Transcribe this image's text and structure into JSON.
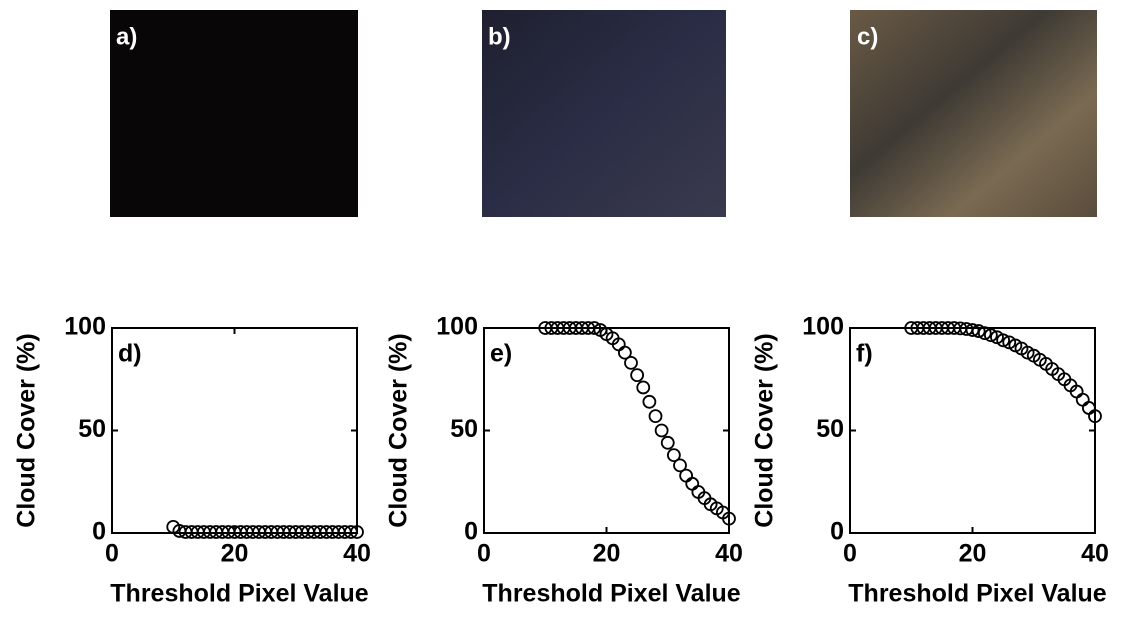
{
  "images": [
    {
      "label": "a)"
    },
    {
      "label": "b)"
    },
    {
      "label": "c)"
    }
  ],
  "chart_data": [
    {
      "type": "scatter",
      "label": "d)",
      "xlabel": "Threshold Pixel Value",
      "ylabel": "Cloud Cover (%)",
      "color": "#000000",
      "x": [
        10,
        11,
        12,
        13,
        14,
        15,
        16,
        17,
        18,
        19,
        20,
        21,
        22,
        23,
        24,
        25,
        26,
        27,
        28,
        29,
        30,
        31,
        32,
        33,
        34,
        35,
        36,
        37,
        38,
        39,
        40
      ],
      "values": [
        3,
        1,
        0.5,
        0.5,
        0.5,
        0.5,
        0.5,
        0.5,
        0.5,
        0.5,
        0.5,
        0.5,
        0.5,
        0.5,
        0.5,
        0.5,
        0.5,
        0.5,
        0.5,
        0.5,
        0.5,
        0.5,
        0.5,
        0.5,
        0.5,
        0.5,
        0.5,
        0.5,
        0.5,
        0.5,
        0.5
      ],
      "xlim": [
        0,
        40
      ],
      "ylim": [
        0,
        100
      ],
      "xticks": [
        0,
        20,
        40
      ],
      "yticks": [
        0,
        50,
        100
      ]
    },
    {
      "type": "scatter",
      "label": "e)",
      "xlabel": "Threshold Pixel Value",
      "ylabel": "Cloud Cover (%)",
      "color": "#000000",
      "x": [
        10,
        11,
        12,
        13,
        14,
        15,
        16,
        17,
        18,
        19,
        20,
        21,
        22,
        23,
        24,
        25,
        26,
        27,
        28,
        29,
        30,
        31,
        32,
        33,
        34,
        35,
        36,
        37,
        38,
        39,
        40
      ],
      "values": [
        100,
        100,
        100,
        100,
        100,
        100,
        100,
        100,
        100,
        99,
        97,
        95,
        92,
        88,
        83,
        77,
        71,
        64,
        57,
        50,
        44,
        38,
        33,
        28,
        24,
        20,
        17,
        14,
        12,
        10,
        7
      ],
      "xlim": [
        0,
        40
      ],
      "ylim": [
        0,
        100
      ],
      "xticks": [
        0,
        20,
        40
      ],
      "yticks": [
        0,
        50,
        100
      ]
    },
    {
      "type": "scatter",
      "label": "f)",
      "xlabel": "Threshold Pixel Value",
      "ylabel": "Cloud Cover (%)",
      "color": "#000000",
      "x": [
        10,
        11,
        12,
        13,
        14,
        15,
        16,
        17,
        18,
        19,
        20,
        21,
        22,
        23,
        24,
        25,
        26,
        27,
        28,
        29,
        30,
        31,
        32,
        33,
        34,
        35,
        36,
        37,
        38,
        39,
        40
      ],
      "values": [
        100,
        100,
        100,
        100,
        100,
        100,
        100,
        100,
        99.8,
        99.5,
        99,
        98.5,
        97.5,
        96.5,
        95.5,
        94,
        93,
        91.5,
        90,
        88,
        86.5,
        84.5,
        82.5,
        80,
        77.5,
        75,
        72,
        69,
        65,
        61,
        57
      ],
      "xlim": [
        0,
        40
      ],
      "ylim": [
        0,
        100
      ],
      "xticks": [
        0,
        20,
        40
      ],
      "yticks": [
        0,
        50,
        100
      ]
    }
  ]
}
